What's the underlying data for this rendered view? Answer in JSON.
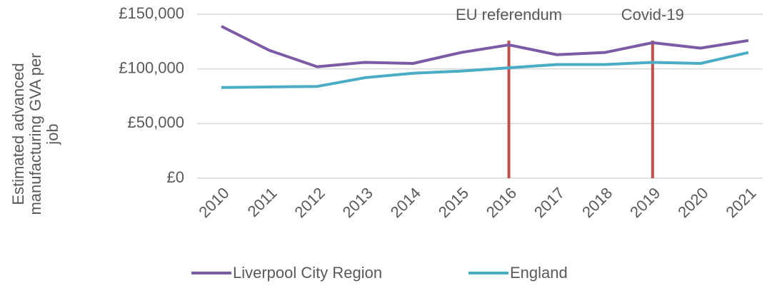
{
  "chart_data": {
    "type": "line",
    "y_label": "Estimated advanced manufacturing GVA per job",
    "categories": [
      "2010",
      "2011",
      "2012",
      "2013",
      "2014",
      "2015",
      "2016",
      "2017",
      "2018",
      "2019",
      "2020",
      "2021"
    ],
    "series": [
      {
        "name": "Liverpool City Region",
        "color": "#7b5aa6",
        "values": [
          139000,
          117000,
          102000,
          106000,
          105000,
          115000,
          122000,
          113000,
          115000,
          124000,
          119000,
          126000
        ]
      },
      {
        "name": "England",
        "color": "#4bacc6",
        "values": [
          83000,
          83500,
          84000,
          92000,
          96000,
          98000,
          101000,
          104000,
          104000,
          106000,
          105000,
          115000
        ]
      }
    ],
    "annotations": [
      {
        "label": "EU referendum",
        "category": "2016",
        "color": "#c0504d"
      },
      {
        "label": "Covid-19",
        "category": "2019",
        "color": "#c0504d"
      }
    ],
    "ylim": [
      0,
      150000
    ],
    "yticks": [
      {
        "value": 0,
        "label": "£0"
      },
      {
        "value": 50000,
        "label": "£50,000"
      },
      {
        "value": 100000,
        "label": "£100,000"
      },
      {
        "value": 150000,
        "label": "£150,000"
      }
    ],
    "grid": true,
    "legend": "bottom"
  }
}
